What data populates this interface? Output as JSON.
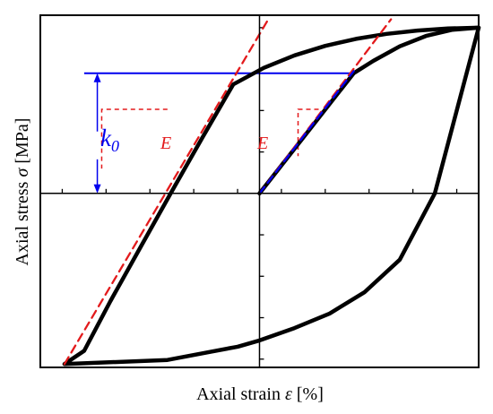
{
  "chart_data": {
    "type": "line",
    "title": "",
    "xlabel": "Axial strain",
    "xlabel_symbol": "ε",
    "xlabel_unit": "[%]",
    "ylabel": "Axial stress",
    "ylabel_symbol": "σ",
    "ylabel_unit": "[MPa]",
    "tick_labels": "none (unlabeled ticks)",
    "xlim": [
      -5.0,
      5.0
    ],
    "ylim": [
      -4.2,
      4.3
    ],
    "grid": false,
    "series": [
      {
        "color": "#000000",
        "style": "solid",
        "x": [
          5.0,
          4.3,
          3.6,
          2.9,
          2.2,
          1.5,
          0.8,
          0.1,
          -0.6,
          -1.3,
          -2.0,
          -2.7,
          -3.4,
          -4.0,
          -4.45,
          -2.1,
          -1.1,
          -0.5,
          0.0,
          0.8,
          1.6,
          2.4,
          3.2,
          4.0,
          5.0
        ],
        "y": [
          4.0,
          3.98,
          3.93,
          3.85,
          3.73,
          3.56,
          3.33,
          3.03,
          2.63,
          1.35,
          0.05,
          -1.27,
          -2.6,
          -3.8,
          -4.12,
          -4.02,
          -3.82,
          -3.7,
          -3.55,
          -3.25,
          -2.9,
          -2.38,
          -1.6,
          0.0,
          4.0
        ]
      },
      {
        "color": "#000000",
        "style": "solid",
        "x": [
          0.0,
          2.15,
          2.6,
          3.2,
          3.8,
          4.4,
          5.0
        ],
        "y": [
          0.0,
          2.9,
          3.2,
          3.55,
          3.8,
          3.95,
          4.0
        ]
      },
      {
        "color": "#e31a1c",
        "style": "dashed",
        "x": [
          -4.45,
          0.2
        ],
        "y": [
          -4.12,
          4.2
        ]
      },
      {
        "color": "#e31a1c",
        "style": "dashed",
        "x": [
          0.0,
          3.0
        ],
        "y": [
          0.0,
          4.2
        ]
      },
      {
        "color": "#0000ee",
        "style": "dashed",
        "x": [
          0.0,
          2.15
        ],
        "y": [
          0.0,
          2.95
        ]
      }
    ],
    "annotations": [
      {
        "text": "k",
        "subscript": "0",
        "color": "#0000ee",
        "kind": "vertical double arrow from 0 to 2.9 at x=-3.7"
      },
      {
        "text": "E",
        "color": "#e31a1c",
        "kind": "slope triangle on loading branch"
      },
      {
        "text": "E",
        "color": "#e31a1c",
        "kind": "slope triangle on reloading branch"
      }
    ],
    "reference_lines": [
      {
        "color": "#0000ee",
        "style": "solid",
        "orientation": "horizontal",
        "y": 2.9,
        "x": [
          -4.0,
          2.15
        ]
      }
    ],
    "colors": {
      "curve": "#000000",
      "elastic": "#e31a1c",
      "k0": "#0000ee",
      "axes": "#000000"
    }
  }
}
